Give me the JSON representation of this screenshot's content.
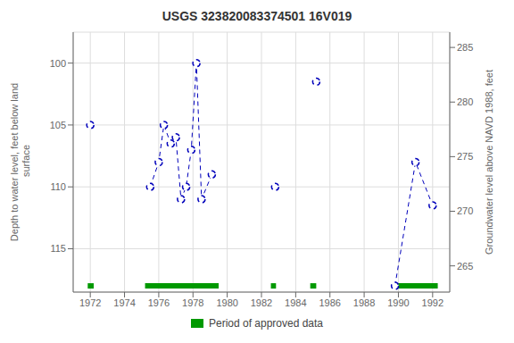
{
  "chart_data": {
    "type": "line",
    "title": "USGS 323820083374501 16V019",
    "ylabel": "Depth to water level, feet below land\n surface",
    "y2label": "Groundwater level above NAVD 1988, feet",
    "xlim": [
      1971,
      1993
    ],
    "xticks": [
      1972,
      1974,
      1976,
      1978,
      1980,
      1982,
      1984,
      1986,
      1988,
      1990,
      1992
    ],
    "ylim": [
      118.5,
      97.5
    ],
    "yticks": [
      100,
      105,
      110,
      115
    ],
    "y2lim": [
      262.6,
      286.4
    ],
    "y2ticks": [
      265,
      270,
      275,
      280,
      285
    ],
    "grid": true,
    "legend": "bottom",
    "series": [
      {
        "x": [
          1972.0
        ],
        "values": [
          105.0
        ],
        "color": "#0000bb",
        "line_style": "dashed",
        "marker": "o"
      },
      {
        "x": [
          1975.5,
          1976.0,
          1976.3,
          1976.7,
          1977.0,
          1977.3,
          1977.6,
          1977.9,
          1978.2,
          1978.5,
          1979.1
        ],
        "values": [
          110.0,
          108.0,
          105.0,
          106.5,
          106.0,
          111.0,
          110.0,
          107.0,
          100.0,
          111.0,
          109.0
        ],
        "color": "#0000bb",
        "line_style": "dashed",
        "marker": "o"
      },
      {
        "x": [
          1982.8
        ],
        "values": [
          110.0
        ],
        "color": "#0000bb",
        "line_style": "dashed",
        "marker": "o"
      },
      {
        "x": [
          1985.2
        ],
        "values": [
          101.5
        ],
        "color": "#0000bb",
        "line_style": "dashed",
        "marker": "o"
      },
      {
        "x": [
          1989.8,
          1991.0,
          1992.0
        ],
        "values": [
          118.0,
          108.0,
          111.5
        ],
        "color": "#0000bb",
        "line_style": "dashed",
        "marker": "o"
      }
    ],
    "approved_periods": {
      "name": "Period of approved data",
      "color": "#009900",
      "y": 118.0,
      "periods": [
        [
          1971.85,
          1972.2
        ],
        [
          1975.2,
          1979.5
        ],
        [
          1982.55,
          1982.85
        ],
        [
          1984.85,
          1985.2
        ],
        [
          1989.7,
          1992.3
        ]
      ]
    }
  }
}
